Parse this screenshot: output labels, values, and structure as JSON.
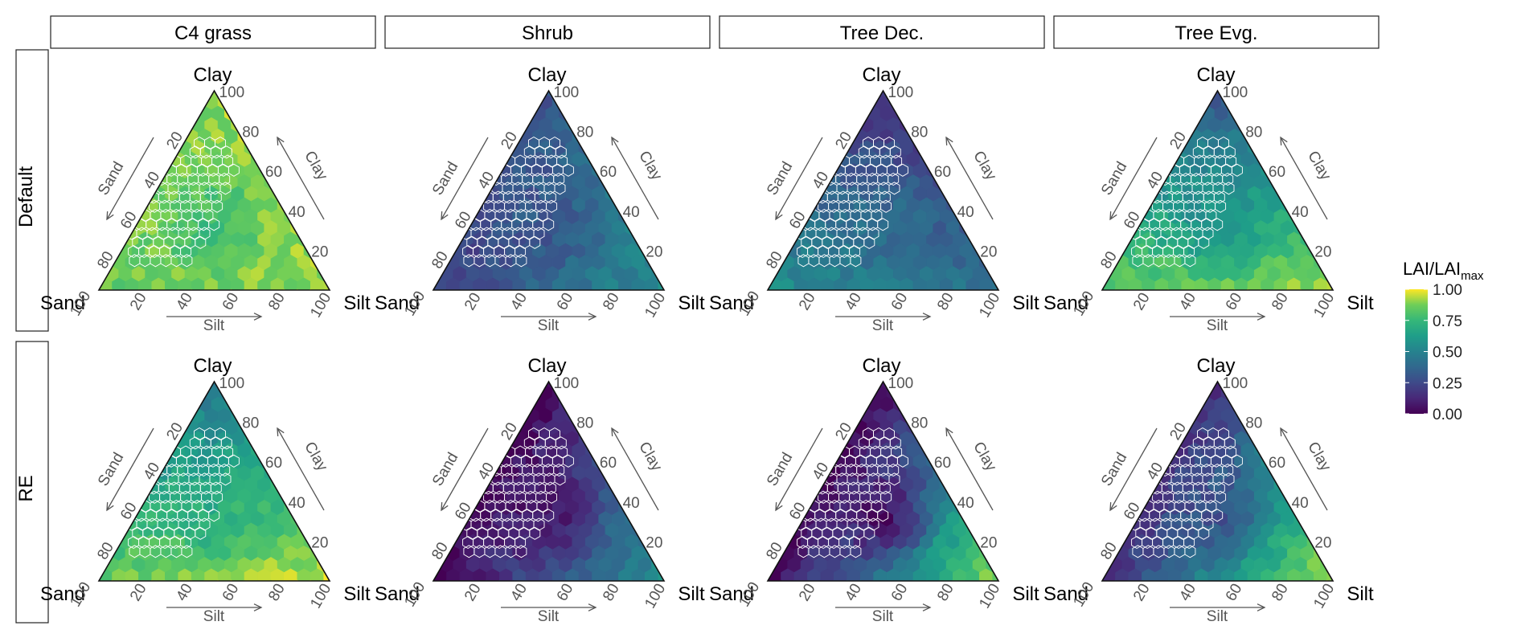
{
  "chart_data": {
    "type": "ternary-hexbin",
    "columns": [
      "C4 grass",
      "Shrub",
      "Tree Dec.",
      "Tree Evg."
    ],
    "rows": [
      "Default",
      "RE"
    ],
    "axes": {
      "corner_labels": {
        "top": "Clay",
        "left": "Sand",
        "right": "Silt"
      },
      "ticks": [
        "20",
        "40",
        "60",
        "80",
        "100"
      ],
      "arrow_labels": {
        "left": "Sand",
        "right": "Clay",
        "bottom": "Silt"
      },
      "range": [
        0,
        100
      ]
    },
    "legend": {
      "title_main": "LAI/LAI",
      "title_sub": "max",
      "ticks": [
        "1.00",
        "0.75",
        "0.50",
        "0.25",
        "0.00"
      ],
      "range": [
        0,
        1
      ],
      "colormap": "viridis",
      "placement": "right"
    },
    "panels": [
      {
        "row": "Default",
        "column": "C4 grass",
        "lai_ratio_at": {
          "sand_corner": 0.85,
          "silt_corner": 0.9,
          "clay_corner": 0.9,
          "center": 0.75
        }
      },
      {
        "row": "Default",
        "column": "Shrub",
        "lai_ratio_at": {
          "sand_corner": 0.2,
          "silt_corner": 0.55,
          "clay_corner": 0.3,
          "center": 0.3
        }
      },
      {
        "row": "Default",
        "column": "Tree Dec.",
        "lai_ratio_at": {
          "sand_corner": 0.55,
          "silt_corner": 0.4,
          "clay_corner": 0.15,
          "center": 0.4
        }
      },
      {
        "row": "Default",
        "column": "Tree Evg.",
        "lai_ratio_at": {
          "sand_corner": 0.85,
          "silt_corner": 0.9,
          "clay_corner": 0.3,
          "center": 0.55
        }
      },
      {
        "row": "RE",
        "column": "C4 grass",
        "lai_ratio_at": {
          "sand_corner": 0.85,
          "silt_corner": 0.95,
          "clay_corner": 0.45,
          "center": 0.7
        }
      },
      {
        "row": "RE",
        "column": "Shrub",
        "lai_ratio_at": {
          "sand_corner": 0.02,
          "silt_corner": 0.55,
          "clay_corner": 0.02,
          "center": 0.05
        }
      },
      {
        "row": "RE",
        "column": "Tree Dec.",
        "lai_ratio_at": {
          "sand_corner": 0.02,
          "silt_corner": 0.9,
          "clay_corner": 0.02,
          "center": 0.02
        }
      },
      {
        "row": "RE",
        "column": "Tree Evg.",
        "lai_ratio_at": {
          "sand_corner": 0.15,
          "silt_corner": 0.95,
          "clay_corner": 0.15,
          "center": 0.25
        }
      }
    ]
  }
}
